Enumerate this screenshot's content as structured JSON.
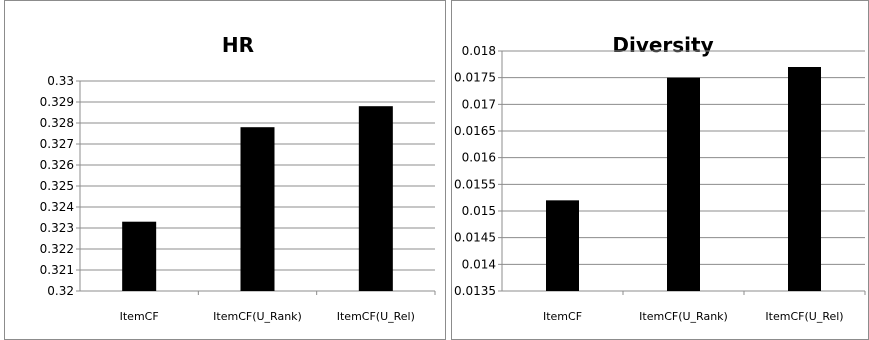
{
  "chart_data": [
    {
      "type": "bar",
      "title": "HR",
      "categories": [
        "ItemCF",
        "ItemCF(U_Rank)",
        "ItemCF(U_Rel)"
      ],
      "values": [
        0.3233,
        0.3278,
        0.3288
      ],
      "ylim": [
        0.32,
        0.33
      ],
      "ytick_step": 0.001,
      "yticks": [
        "0.32",
        "0.321",
        "0.322",
        "0.323",
        "0.324",
        "0.325",
        "0.326",
        "0.327",
        "0.328",
        "0.329",
        "0.33"
      ],
      "grid": true,
      "bar_color": "#000000",
      "grid_color": "#8c8c8c"
    },
    {
      "type": "bar",
      "title": "Diversity",
      "categories": [
        "ItemCF",
        "ItemCF(U_Rank)",
        "ItemCF(U_Rel)"
      ],
      "values": [
        0.0152,
        0.0175,
        0.0177
      ],
      "ylim": [
        0.0135,
        0.018
      ],
      "ytick_step": 0.0005,
      "yticks": [
        "0.0135",
        "0.014",
        "0.0145",
        "0.015",
        "0.0155",
        "0.016",
        "0.0165",
        "0.017",
        "0.0175",
        "0.018"
      ],
      "grid": true,
      "bar_color": "#000000",
      "grid_color": "#8c8c8c"
    }
  ]
}
